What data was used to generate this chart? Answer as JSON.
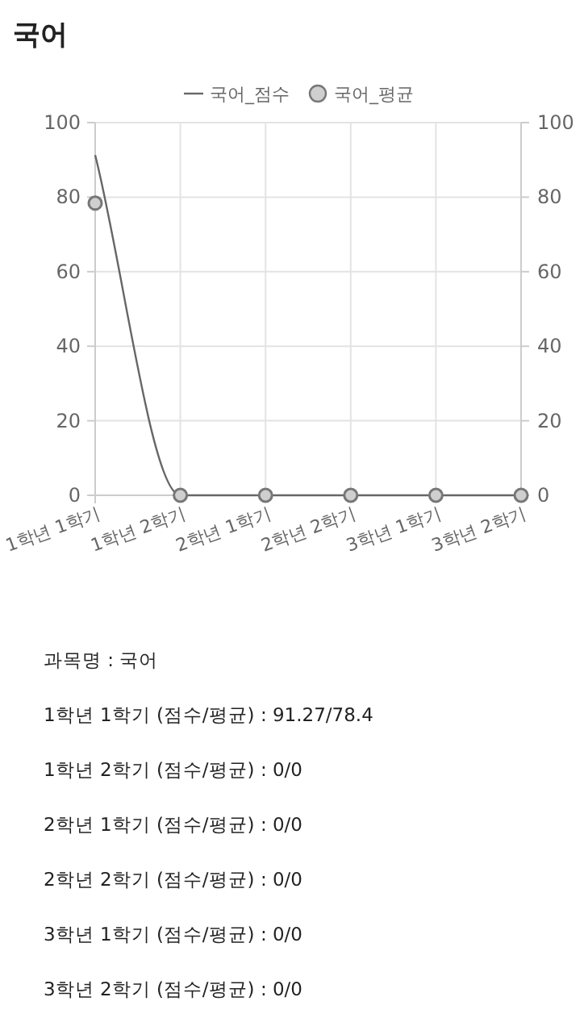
{
  "chart_data": {
    "type": "line",
    "title": "국어",
    "categories": [
      "1학년 1학기",
      "1학년 2학기",
      "2학년 1학기",
      "2학년 2학기",
      "3학년 1학기",
      "3학년 2학기"
    ],
    "series": [
      {
        "name": "국어_점수",
        "color": "#666666",
        "values": [
          91.27,
          0,
          0,
          0,
          0,
          0
        ]
      },
      {
        "name": "국어_평균",
        "type": "scatter",
        "color": "#777777",
        "values": [
          78.4,
          0,
          0,
          0,
          0,
          0
        ]
      }
    ],
    "ylim": [
      0,
      100
    ],
    "yticks": [
      0,
      20,
      40,
      60,
      80,
      100
    ],
    "y2lim": [
      0,
      100
    ],
    "y2ticks": [
      0,
      20,
      40,
      60,
      80,
      100
    ],
    "grid": true,
    "legend": "top",
    "annotations": [
      "과목명 : 국어",
      "1학년 1학기 (점수/평균) : 91.27/78.4",
      "1학년 2학기 (점수/평균) : 0/0",
      "2학년 1학기 (점수/평균) : 0/0",
      "2학년 2학기 (점수/평균) : 0/0",
      "3학년 1학기 (점수/평균) : 0/0",
      "3학년 2학기 (점수/평균) : 0/0"
    ]
  }
}
